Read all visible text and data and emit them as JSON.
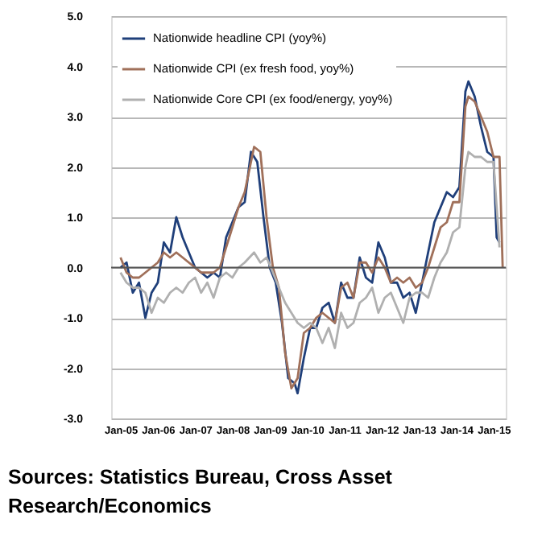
{
  "chart_data": {
    "type": "line",
    "annotations": [
      "Sources: Statistics Bureau, Cross Asset Research/Economics"
    ],
    "xlim": [
      "2004-10",
      "2015-05"
    ],
    "xticks": [
      {
        "value": "2005-01",
        "label": "Jan-05"
      },
      {
        "value": "2006-01",
        "label": "Jan-06"
      },
      {
        "value": "2007-01",
        "label": "Jan-07"
      },
      {
        "value": "2008-01",
        "label": "Jan-08"
      },
      {
        "value": "2009-01",
        "label": "Jan-09"
      },
      {
        "value": "2010-01",
        "label": "Jan-10"
      },
      {
        "value": "2011-01",
        "label": "Jan-11"
      },
      {
        "value": "2012-01",
        "label": "Jan-12"
      },
      {
        "value": "2013-01",
        "label": "Jan-13"
      },
      {
        "value": "2014-01",
        "label": "Jan-14"
      },
      {
        "value": "2015-01",
        "label": "Jan-15"
      }
    ],
    "ylim": [
      -3,
      5
    ],
    "yticks": [
      {
        "value": -3,
        "label": "-3.0"
      },
      {
        "value": -2,
        "label": "-2.0"
      },
      {
        "value": -1,
        "label": "-1.0"
      },
      {
        "value": 0,
        "label": "0.0"
      },
      {
        "value": 1,
        "label": "1.0"
      },
      {
        "value": 2,
        "label": "2.0"
      },
      {
        "value": 3,
        "label": "3.0"
      },
      {
        "value": 4,
        "label": "4.0"
      },
      {
        "value": 5,
        "label": "5.0"
      }
    ],
    "grid": "y",
    "legend": "top left",
    "line_style": "solid",
    "marker": "none",
    "series": [
      {
        "name": "Nationwide headline CPI (yoy%)",
        "color": "#1f3f7a",
        "x": [
          "2005-01",
          "2005-03",
          "2005-05",
          "2005-07",
          "2005-09",
          "2005-11",
          "2006-01",
          "2006-03",
          "2006-05",
          "2006-07",
          "2006-09",
          "2006-11",
          "2007-01",
          "2007-03",
          "2007-05",
          "2007-07",
          "2007-09",
          "2007-11",
          "2008-01",
          "2008-03",
          "2008-05",
          "2008-07",
          "2008-09",
          "2008-11",
          "2009-01",
          "2009-03",
          "2009-05",
          "2009-07",
          "2009-09",
          "2009-10",
          "2009-12",
          "2010-02",
          "2010-04",
          "2010-06",
          "2010-08",
          "2010-10",
          "2010-12",
          "2011-02",
          "2011-04",
          "2011-06",
          "2011-08",
          "2011-10",
          "2011-12",
          "2012-02",
          "2012-04",
          "2012-06",
          "2012-08",
          "2012-10",
          "2012-12",
          "2013-02",
          "2013-04",
          "2013-06",
          "2013-08",
          "2013-10",
          "2013-12",
          "2014-02",
          "2014-04",
          "2014-05",
          "2014-07",
          "2014-09",
          "2014-11",
          "2015-01",
          "2015-02",
          "2015-03"
        ],
        "values": [
          0.0,
          0.1,
          -0.5,
          -0.3,
          -1.0,
          -0.5,
          -0.3,
          0.5,
          0.3,
          1.0,
          0.6,
          0.3,
          0.0,
          -0.1,
          -0.2,
          -0.1,
          -0.2,
          0.6,
          0.9,
          1.2,
          1.3,
          2.3,
          2.1,
          1.0,
          0.0,
          -0.3,
          -1.1,
          -2.2,
          -2.3,
          -2.5,
          -1.8,
          -1.2,
          -1.2,
          -0.8,
          -0.7,
          -1.1,
          -0.3,
          -0.6,
          -0.6,
          0.2,
          -0.2,
          -0.3,
          0.5,
          0.2,
          -0.3,
          -0.3,
          -0.6,
          -0.5,
          -0.9,
          -0.3,
          0.3,
          0.9,
          1.2,
          1.5,
          1.4,
          1.6,
          3.5,
          3.7,
          3.4,
          2.8,
          2.3,
          2.2,
          0.6,
          0.5
        ]
      },
      {
        "name": "Nationwide CPI (ex fresh food, yoy%)",
        "color": "#a0705a",
        "x": [
          "2005-01",
          "2005-03",
          "2005-05",
          "2005-07",
          "2005-09",
          "2005-11",
          "2006-01",
          "2006-03",
          "2006-05",
          "2006-07",
          "2006-09",
          "2006-11",
          "2007-01",
          "2007-03",
          "2007-05",
          "2007-07",
          "2007-09",
          "2007-11",
          "2008-01",
          "2008-03",
          "2008-05",
          "2008-08",
          "2008-10",
          "2008-12",
          "2009-02",
          "2009-04",
          "2009-06",
          "2009-08",
          "2009-10",
          "2009-12",
          "2010-02",
          "2010-04",
          "2010-06",
          "2010-08",
          "2010-10",
          "2010-12",
          "2011-02",
          "2011-04",
          "2011-06",
          "2011-08",
          "2011-10",
          "2011-12",
          "2012-02",
          "2012-04",
          "2012-06",
          "2012-08",
          "2012-10",
          "2012-12",
          "2013-02",
          "2013-04",
          "2013-06",
          "2013-08",
          "2013-10",
          "2013-12",
          "2014-02",
          "2014-04",
          "2014-05",
          "2014-07",
          "2014-09",
          "2014-11",
          "2015-01",
          "2015-03",
          "2015-04"
        ],
        "values": [
          0.2,
          -0.1,
          -0.2,
          -0.2,
          -0.1,
          0.0,
          0.1,
          0.3,
          0.2,
          0.3,
          0.2,
          0.1,
          0.0,
          -0.1,
          -0.1,
          -0.1,
          0.0,
          0.4,
          0.8,
          1.2,
          1.5,
          2.4,
          2.3,
          1.0,
          0.0,
          -0.4,
          -1.7,
          -2.4,
          -2.2,
          -1.3,
          -1.2,
          -1.0,
          -0.9,
          -1.0,
          -1.1,
          -0.4,
          -0.3,
          -0.6,
          0.1,
          0.1,
          -0.1,
          0.2,
          0.0,
          -0.3,
          -0.2,
          -0.3,
          -0.2,
          -0.4,
          -0.3,
          0.0,
          0.4,
          0.8,
          0.9,
          1.3,
          1.3,
          3.2,
          3.4,
          3.3,
          3.0,
          2.7,
          2.2,
          2.2,
          0.0
        ]
      },
      {
        "name": "Nationwide Core CPI (ex food/energy, yoy%)",
        "color": "#b0b0b0",
        "x": [
          "2005-01",
          "2005-03",
          "2005-05",
          "2005-07",
          "2005-09",
          "2005-11",
          "2006-01",
          "2006-03",
          "2006-05",
          "2006-07",
          "2006-09",
          "2006-11",
          "2007-01",
          "2007-03",
          "2007-05",
          "2007-07",
          "2007-09",
          "2007-11",
          "2008-01",
          "2008-03",
          "2008-05",
          "2008-08",
          "2008-10",
          "2008-12",
          "2009-02",
          "2009-04",
          "2009-06",
          "2009-08",
          "2009-10",
          "2009-12",
          "2010-02",
          "2010-04",
          "2010-06",
          "2010-08",
          "2010-10",
          "2010-12",
          "2011-02",
          "2011-04",
          "2011-06",
          "2011-08",
          "2011-10",
          "2011-12",
          "2012-02",
          "2012-04",
          "2012-06",
          "2012-08",
          "2012-10",
          "2012-12",
          "2013-02",
          "2013-04",
          "2013-06",
          "2013-08",
          "2013-10",
          "2013-12",
          "2014-02",
          "2014-04",
          "2014-05",
          "2014-07",
          "2014-09",
          "2014-11",
          "2015-01",
          "2015-03"
        ],
        "values": [
          -0.1,
          -0.3,
          -0.4,
          -0.4,
          -0.5,
          -0.9,
          -0.6,
          -0.7,
          -0.5,
          -0.4,
          -0.5,
          -0.3,
          -0.2,
          -0.5,
          -0.3,
          -0.6,
          -0.2,
          -0.1,
          -0.2,
          0.0,
          0.1,
          0.3,
          0.1,
          0.2,
          -0.1,
          -0.4,
          -0.7,
          -0.9,
          -1.1,
          -1.2,
          -1.1,
          -1.2,
          -1.5,
          -1.2,
          -1.6,
          -0.9,
          -1.2,
          -1.1,
          -0.7,
          -0.6,
          -0.4,
          -0.9,
          -0.6,
          -0.5,
          -0.8,
          -1.1,
          -0.6,
          -0.5,
          -0.5,
          -0.6,
          -0.2,
          0.1,
          0.3,
          0.7,
          0.8,
          2.0,
          2.3,
          2.2,
          2.2,
          2.1,
          2.1,
          0.4
        ]
      }
    ]
  }
}
